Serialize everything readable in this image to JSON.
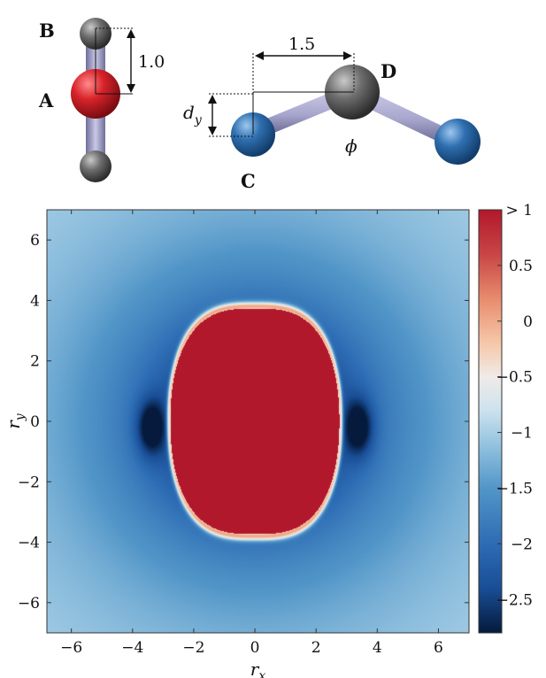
{
  "molecules": {
    "left": {
      "atoms": {
        "top": "B",
        "center": "A"
      },
      "bond_length": "1.0"
    },
    "right": {
      "atoms": {
        "left": "C",
        "center": "D"
      },
      "distance": "1.5",
      "offset_symbol": "d",
      "offset_subscript": "y",
      "angle_symbol": "ϕ"
    },
    "colors": {
      "oxygen": "#d8232a",
      "hydrogen": "#6e6e6e",
      "blue_atom": "#2f6fb0",
      "bond": "#a7a6cc"
    }
  },
  "chart_data": {
    "type": "heatmap",
    "xlabel": "r",
    "xlabel_sub": "x",
    "ylabel": "r",
    "ylabel_sub": "y",
    "xlim": [
      -6.8,
      7.0
    ],
    "ylim": [
      -7.0,
      7.0
    ],
    "xticks": [
      -6,
      -4,
      -2,
      0,
      2,
      4,
      6
    ],
    "yticks": [
      -6,
      -4,
      -2,
      0,
      2,
      4,
      6
    ],
    "xtick_labels": [
      "−6",
      "−4",
      "−2",
      "0",
      "2",
      "4",
      "6"
    ],
    "ytick_labels": [
      "−6",
      "−4",
      "−2",
      "0",
      "2",
      "4",
      "6"
    ],
    "colorbar": {
      "range": [
        -2.8,
        1.0
      ],
      "ticks": [
        1,
        0.5,
        0,
        -0.5,
        -1,
        -1.5,
        -2,
        -2.5
      ],
      "tick_labels": [
        "> 1",
        "0.5",
        "0",
        "−0.5",
        "−1",
        "−1.5",
        "−2",
        "−2.5"
      ]
    },
    "central_region": {
      "value": "> 1",
      "x_range": [
        -2.8,
        2.8
      ],
      "y_range": [
        -3.8,
        3.8
      ]
    },
    "minima": [
      {
        "x": -3.4,
        "y": -0.2,
        "value": -2.6
      },
      {
        "x": 3.4,
        "y": -0.2,
        "value": -2.6
      }
    ],
    "far_field_value": -0.9
  }
}
